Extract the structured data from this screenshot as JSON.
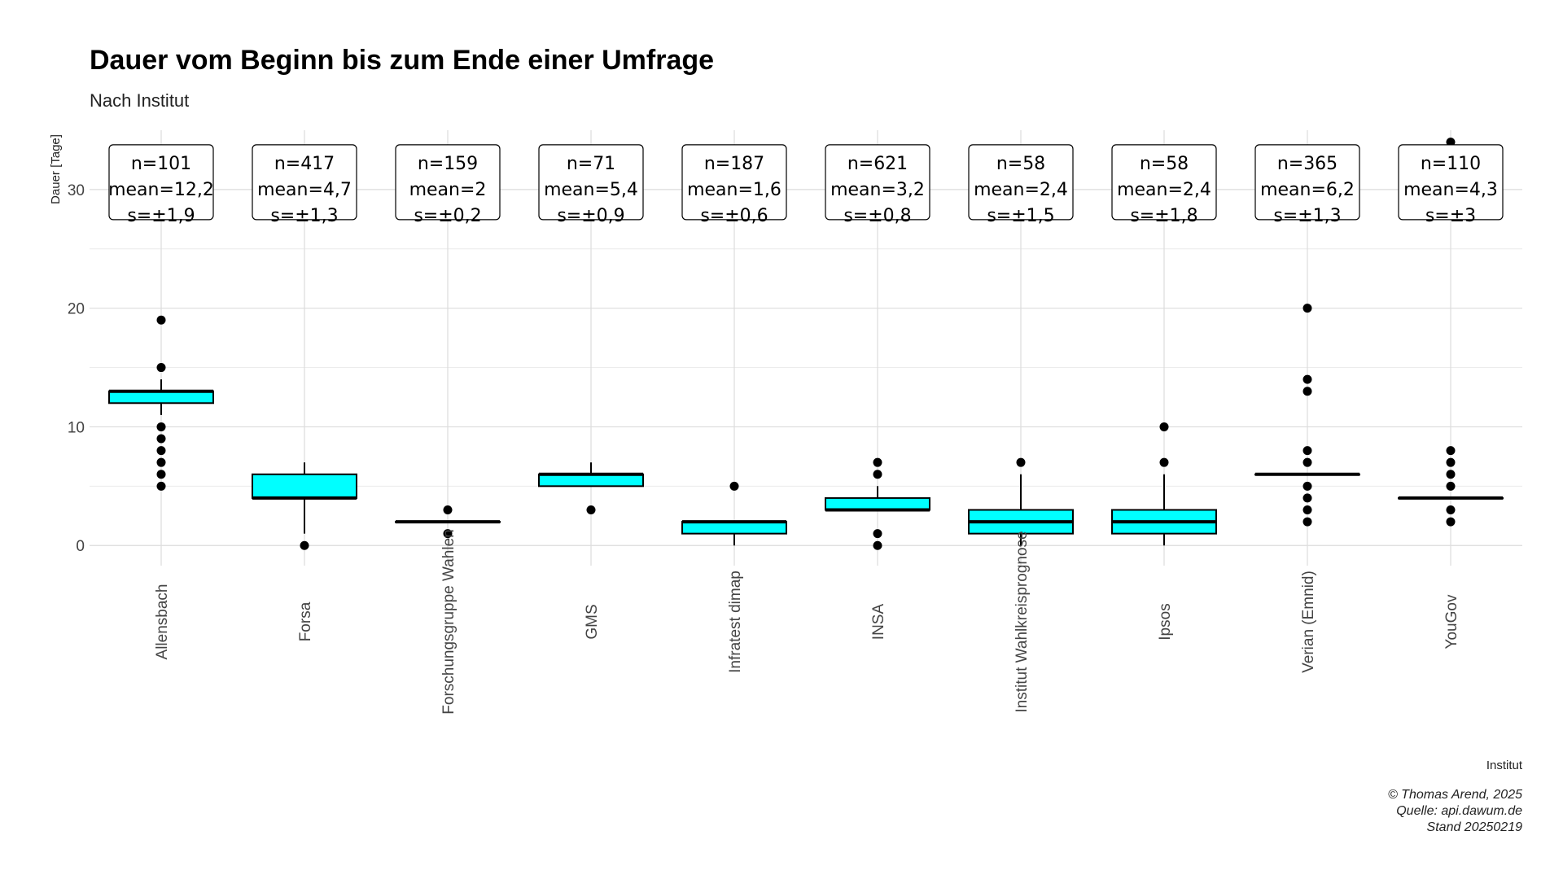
{
  "chart_data": {
    "type": "boxplot",
    "title": "Dauer vom Beginn bis zum Ende einer Umfrage",
    "subtitle": "Nach Institut",
    "xlabel": "Institut",
    "ylabel": "Dauer [Tage]",
    "ylim": [
      -1.7,
      35
    ],
    "yticks": [
      0,
      10,
      20,
      30
    ],
    "grid": true,
    "box_color": "#00FFFF",
    "categories": [
      "Allensbach",
      "Forsa",
      "Forschungsgruppe Wahlen",
      "GMS",
      "Infratest dimap",
      "INSA",
      "Institut Wahlkreisprognose",
      "Ipsos",
      "Verian (Emnid)",
      "YouGov"
    ],
    "boxes": [
      {
        "q1": 12,
        "median": 13,
        "q3": 13,
        "whisker_low": 11,
        "whisker_high": 14,
        "outliers": [
          19,
          15,
          10,
          9,
          8,
          7,
          6,
          5
        ]
      },
      {
        "q1": 4,
        "median": 4,
        "q3": 6,
        "whisker_low": 1,
        "whisker_high": 7,
        "outliers": [
          0
        ]
      },
      {
        "q1": 2,
        "median": 2,
        "q3": 2,
        "whisker_low": 2,
        "whisker_high": 2,
        "outliers": [
          3,
          1
        ]
      },
      {
        "q1": 5,
        "median": 6,
        "q3": 6,
        "whisker_low": 5,
        "whisker_high": 7,
        "outliers": [
          3
        ]
      },
      {
        "q1": 1,
        "median": 2,
        "q3": 2,
        "whisker_low": 0,
        "whisker_high": 2,
        "outliers": [
          5
        ]
      },
      {
        "q1": 3,
        "median": 3,
        "q3": 4,
        "whisker_low": 3,
        "whisker_high": 5,
        "outliers": [
          7,
          6,
          1,
          0
        ]
      },
      {
        "q1": 1,
        "median": 2,
        "q3": 3,
        "whisker_low": 0,
        "whisker_high": 6,
        "outliers": [
          7
        ]
      },
      {
        "q1": 1,
        "median": 2,
        "q3": 3,
        "whisker_low": 0,
        "whisker_high": 6,
        "outliers": [
          10,
          7
        ]
      },
      {
        "q1": 6,
        "median": 6,
        "q3": 6,
        "whisker_low": 6,
        "whisker_high": 6,
        "outliers": [
          20,
          14,
          13,
          8,
          7,
          5,
          4,
          3,
          2
        ]
      },
      {
        "q1": 4,
        "median": 4,
        "q3": 4,
        "whisker_low": 4,
        "whisker_high": 4,
        "outliers": [
          34,
          8,
          7,
          6,
          5,
          3,
          2
        ]
      }
    ],
    "annotations": [
      {
        "n": "n=101",
        "mean": "mean=12,2",
        "s": "s=±1,9"
      },
      {
        "n": "n=417",
        "mean": "mean=4,7",
        "s": "s=±1,3"
      },
      {
        "n": "n=159",
        "mean": "mean=2",
        "s": "s=±0,2"
      },
      {
        "n": "n=71",
        "mean": "mean=5,4",
        "s": "s=±0,9"
      },
      {
        "n": "n=187",
        "mean": "mean=1,6",
        "s": "s=±0,6"
      },
      {
        "n": "n=621",
        "mean": "mean=3,2",
        "s": "s=±0,8"
      },
      {
        "n": "n=58",
        "mean": "mean=2,4",
        "s": "s=±1,5"
      },
      {
        "n": "n=58",
        "mean": "mean=2,4",
        "s": "s=±1,8"
      },
      {
        "n": "n=365",
        "mean": "mean=6,2",
        "s": "s=±1,3"
      },
      {
        "n": "n=110",
        "mean": "mean=4,3",
        "s": "s=±3"
      }
    ],
    "annotation_y": 30,
    "caption": [
      "© Thomas Arend, 2025",
      "Quelle: api.dawum.de",
      "Stand 20250219"
    ]
  }
}
